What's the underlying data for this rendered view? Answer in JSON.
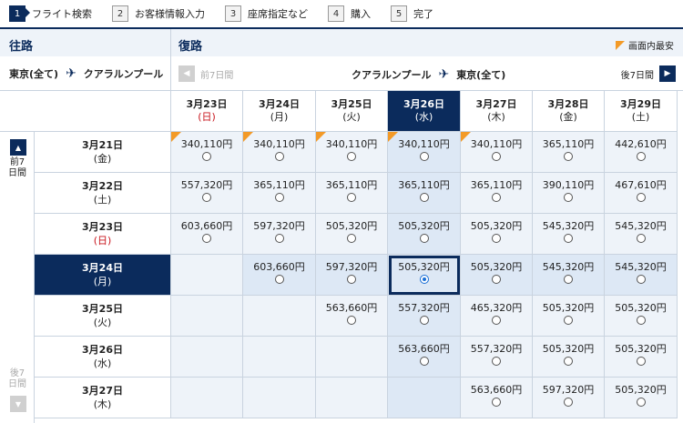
{
  "steps": [
    {
      "num": "1",
      "label": "フライト検索"
    },
    {
      "num": "2",
      "label": "お客様情報入力"
    },
    {
      "num": "3",
      "label": "座席指定など"
    },
    {
      "num": "4",
      "label": "購入"
    },
    {
      "num": "5",
      "label": "完了"
    }
  ],
  "outbound": {
    "title": "往路",
    "origin": "東京(全て)",
    "destination": "クアラルンプール"
  },
  "return": {
    "title": "復路",
    "origin": "クアラルンプール",
    "destination": "東京(全て)",
    "prev_label": "前7日間",
    "next_label": "後7日間"
  },
  "legend_label": "画面内最安",
  "side": {
    "prev_label": "前7日間",
    "next_label": "後7日間"
  },
  "return_dates": [
    {
      "date": "3月23日",
      "dow": "(日)"
    },
    {
      "date": "3月24日",
      "dow": "(月)"
    },
    {
      "date": "3月25日",
      "dow": "(火)"
    },
    {
      "date": "3月26日",
      "dow": "(水)"
    },
    {
      "date": "3月27日",
      "dow": "(木)"
    },
    {
      "date": "3月28日",
      "dow": "(金)"
    },
    {
      "date": "3月29日",
      "dow": "(土)"
    }
  ],
  "outbound_dates": [
    {
      "date": "3月21日",
      "dow": "(金)"
    },
    {
      "date": "3月22日",
      "dow": "(土)"
    },
    {
      "date": "3月23日",
      "dow": "(日)"
    },
    {
      "date": "3月24日",
      "dow": "(月)"
    },
    {
      "date": "3月25日",
      "dow": "(火)"
    },
    {
      "date": "3月26日",
      "dow": "(水)"
    },
    {
      "date": "3月27日",
      "dow": "(木)"
    }
  ],
  "selected": {
    "row": 3,
    "col": 3
  },
  "prices": [
    [
      "340,110円",
      "340,110円",
      "340,110円",
      "340,110円",
      "340,110円",
      "365,110円",
      "442,610円"
    ],
    [
      "557,320円",
      "365,110円",
      "365,110円",
      "365,110円",
      "365,110円",
      "390,110円",
      "467,610円"
    ],
    [
      "603,660円",
      "597,320円",
      "505,320円",
      "505,320円",
      "505,320円",
      "545,320円",
      "545,320円"
    ],
    [
      "",
      "603,660円",
      "597,320円",
      "505,320円",
      "505,320円",
      "545,320円",
      "545,320円"
    ],
    [
      "",
      "",
      "563,660円",
      "557,320円",
      "465,320円",
      "505,320円",
      "505,320円"
    ],
    [
      "",
      "",
      "",
      "563,660円",
      "557,320円",
      "505,320円",
      "505,320円"
    ],
    [
      "",
      "",
      "",
      "",
      "563,660円",
      "597,320円",
      "505,320円"
    ]
  ],
  "cheapest_flags": [
    [
      0,
      0
    ],
    [
      0,
      1
    ],
    [
      0,
      2
    ],
    [
      0,
      3
    ],
    [
      0,
      4
    ]
  ],
  "colors": {
    "navy": "#0b2b5c",
    "orange": "#f39a27",
    "sunday_red": "#c8161d"
  }
}
